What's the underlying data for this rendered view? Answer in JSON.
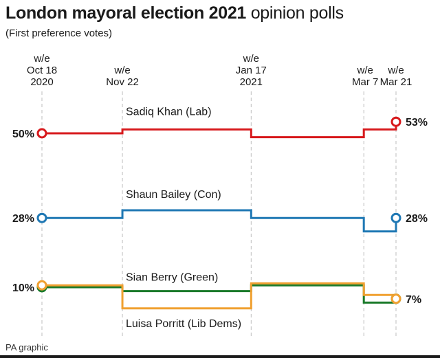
{
  "title_bold": "London mayoral election 2021",
  "title_light": "opinion polls",
  "subtitle": "(First preference votes)",
  "footer": "PA graphic",
  "chart_data": {
    "type": "line",
    "title": "London mayoral election 2021 opinion polls",
    "subtitle": "(First preference votes)",
    "step": true,
    "x_unit": "days",
    "x_range": [
      0,
      154
    ],
    "ylim": [
      0,
      60
    ],
    "gridlines_vertical": true,
    "ticks": [
      {
        "x": 0,
        "lines": [
          "w/e",
          "Oct 18",
          "2020"
        ]
      },
      {
        "x": 35,
        "lines": [
          "w/e",
          "Nov 22"
        ]
      },
      {
        "x": 91,
        "lines": [
          "w/e",
          "Jan 17",
          "2021"
        ]
      },
      {
        "x": 140,
        "lines": [
          "w/e",
          "Mar 7"
        ]
      },
      {
        "x": 154,
        "lines": [
          "w/e",
          "Mar 21"
        ]
      }
    ],
    "series": [
      {
        "name": "Sadiq Khan (Lab)",
        "color": "#d7191c",
        "x": [
          0,
          35,
          91,
          140,
          154
        ],
        "y": [
          50,
          51,
          49,
          51,
          53
        ],
        "start_label": "50%",
        "end_label": "53%"
      },
      {
        "name": "Shaun Bailey (Con)",
        "color": "#1f78b4",
        "x": [
          0,
          35,
          91,
          140,
          154
        ],
        "y": [
          28,
          30,
          28,
          24.5,
          28
        ],
        "start_label": "28%",
        "end_label": "28%"
      },
      {
        "name": "Sian Berry (Green)",
        "color": "#1a7a2a",
        "x": [
          0,
          35,
          91,
          140,
          154
        ],
        "y": [
          10,
          9,
          10.5,
          6,
          7
        ],
        "start_label": "10%",
        "end_label": ""
      },
      {
        "name": "Luisa Porritt (Lib Dems)",
        "color": "#f0a030",
        "x": [
          0,
          35,
          91,
          140,
          154
        ],
        "y": [
          10.5,
          4.5,
          11,
          8,
          7
        ],
        "start_label": "",
        "end_label": "7%"
      }
    ]
  }
}
